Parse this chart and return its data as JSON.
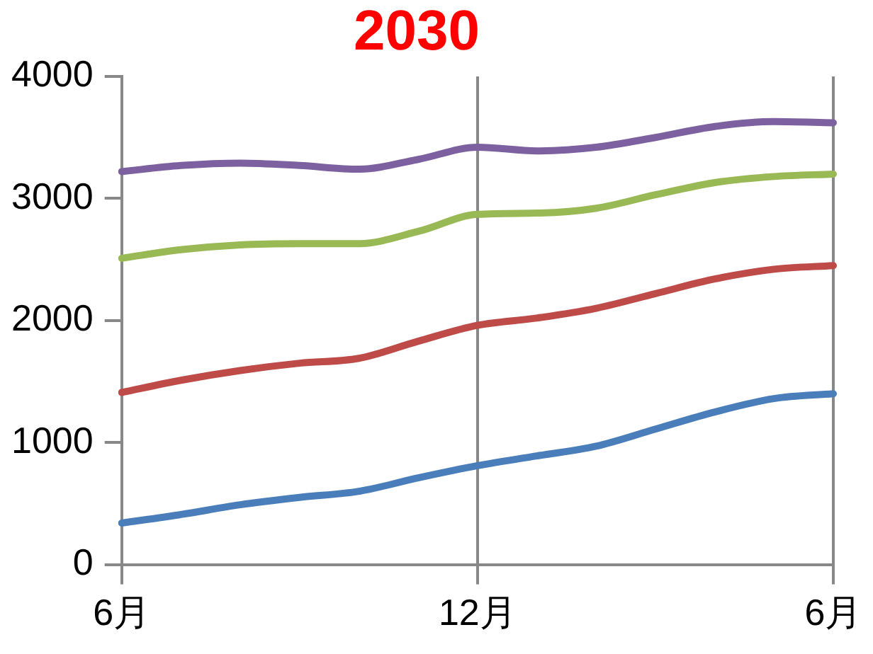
{
  "chart_data": {
    "type": "line",
    "title": "2030",
    "categories": [
      "6月",
      null,
      null,
      null,
      null,
      null,
      "12月",
      null,
      null,
      null,
      null,
      null,
      "6月"
    ],
    "series": [
      {
        "color": "#4a7ebb",
        "values": [
          340,
          410,
          490,
          550,
          600,
          710,
          810,
          890,
          970,
          1110,
          1250,
          1360,
          1400
        ]
      },
      {
        "color": "#be4b48",
        "values": [
          1410,
          1510,
          1590,
          1650,
          1690,
          1830,
          1960,
          2020,
          2100,
          2220,
          2340,
          2420,
          2450
        ]
      },
      {
        "color": "#98b954",
        "values": [
          2510,
          2580,
          2620,
          2630,
          2630,
          2730,
          2870,
          2880,
          2920,
          3030,
          3130,
          3180,
          3200
        ]
      },
      {
        "color": "#7d60a0",
        "values": [
          3220,
          3270,
          3290,
          3270,
          3240,
          3320,
          3420,
          3390,
          3420,
          3500,
          3590,
          3630,
          3620
        ]
      }
    ],
    "ylim": [
      0,
      4000
    ],
    "yticks": [
      0,
      1000,
      2000,
      3000,
      4000
    ],
    "grid": "x",
    "legend": false,
    "marker": "none",
    "line_style": "solid"
  }
}
